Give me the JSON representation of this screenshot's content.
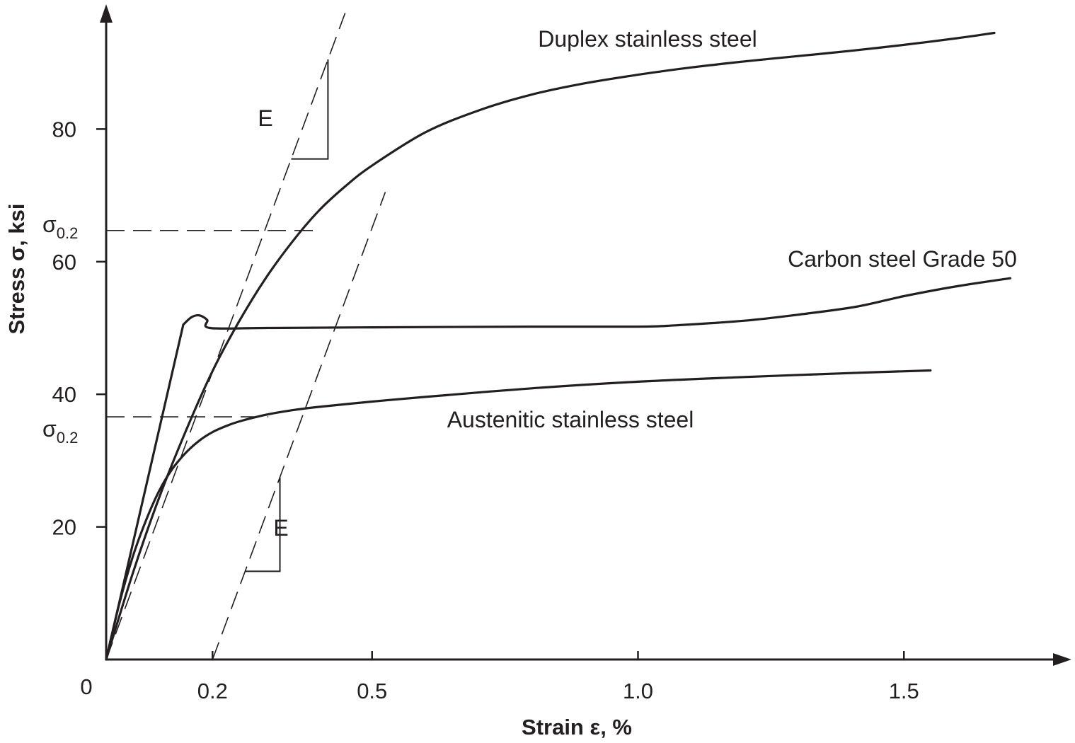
{
  "chart_data": {
    "type": "line",
    "xlabel": "Strain ε, %",
    "ylabel": "Stress σ, ksi",
    "xlim": [
      0,
      1.75
    ],
    "ylim": [
      0,
      92
    ],
    "origin_label": "0",
    "x_ticks": [
      {
        "value": 0.2,
        "label": "0.2"
      },
      {
        "value": 0.5,
        "label": "0.5"
      },
      {
        "value": 1.0,
        "label": "1.0"
      },
      {
        "value": 1.5,
        "label": "1.5"
      }
    ],
    "y_ticks": [
      {
        "value": 20,
        "label": "20"
      },
      {
        "value": 40,
        "label": "40"
      },
      {
        "value": 60,
        "label": "60"
      },
      {
        "value": 80,
        "label": "80"
      }
    ],
    "series": [
      {
        "name": "Duplex stainless steel",
        "x": [
          0,
          0.05,
          0.1,
          0.15,
          0.2,
          0.25,
          0.3,
          0.35,
          0.4,
          0.45,
          0.5,
          0.6,
          0.7,
          0.8,
          0.9,
          1.0,
          1.1,
          1.2,
          1.3,
          1.4,
          1.5,
          1.6,
          1.67
        ],
        "y": [
          0,
          13,
          24.5,
          34.5,
          43.5,
          51,
          57.5,
          63,
          67.7,
          71.4,
          74.5,
          79.5,
          82.8,
          85.2,
          86.9,
          88.2,
          89.3,
          90.2,
          91.0,
          91.8,
          92.7,
          93.7,
          94.5
        ]
      },
      {
        "name": "Carbon steel Grade 50",
        "x": [
          0,
          0.145,
          0.16,
          0.175,
          0.19,
          0.195,
          0.3,
          0.5,
          0.8,
          1.0,
          1.07,
          1.2,
          1.3,
          1.41,
          1.5,
          1.6,
          1.7
        ],
        "y": [
          0,
          50.5,
          51.6,
          51.9,
          51.2,
          50.0,
          50.0,
          50.1,
          50.2,
          50.2,
          50.4,
          51.1,
          52.0,
          53.2,
          54.8,
          56.3,
          57.5
        ]
      },
      {
        "name": "Austenitic stainless steel",
        "x": [
          0,
          0.025,
          0.05,
          0.075,
          0.1,
          0.125,
          0.15,
          0.175,
          0.2,
          0.225,
          0.25,
          0.3,
          0.35,
          0.4,
          0.5,
          0.6,
          0.8,
          1.0,
          1.2,
          1.4,
          1.55
        ],
        "y": [
          0,
          8.5,
          15.5,
          21,
          25.5,
          28.8,
          31.2,
          33.0,
          34.3,
          35.2,
          35.9,
          36.9,
          37.6,
          38.1,
          38.9,
          39.6,
          40.9,
          41.9,
          42.6,
          43.2,
          43.6
        ]
      }
    ],
    "proof_stress": [
      {
        "label": "σ",
        "subscript": "0.2",
        "value": 64.7,
        "strain": 0.39
      },
      {
        "label": "σ",
        "subscript": "0.2",
        "value": 36.6,
        "strain": 0.305
      }
    ],
    "offset_lines": [
      {
        "strain_intercept": 0.0,
        "label": "E"
      },
      {
        "strain_intercept": 0.2,
        "label": "E"
      }
    ],
    "elastic_slope_ksi_per_percent": 217
  }
}
